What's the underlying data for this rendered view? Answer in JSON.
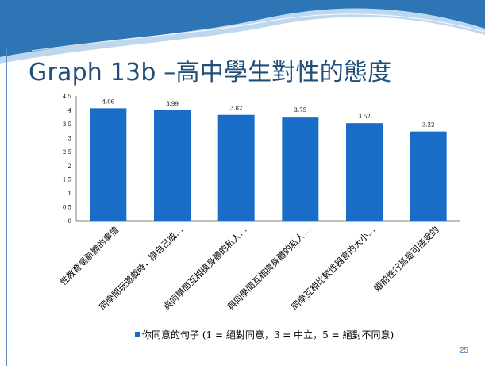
{
  "slide": {
    "title": "Graph 13b –高中學生對性的態度",
    "page_number": "25"
  },
  "colors": {
    "bar": "#1a6dc7",
    "title": "#1f4e79",
    "banner_dark": "#2e75b6",
    "banner_light": "#bdd7ee"
  },
  "chart_data": {
    "type": "bar",
    "categories": [
      "性教育是骯髒的事情",
      "同學間玩遊戲時，摸自己或…",
      "與同學間互相摸身體的私人…",
      "與同學間互相摸身體的私人…",
      "同學互相比較性器官的大小…",
      "婚前性行爲是可接受的"
    ],
    "series": [
      {
        "name": "你同意的句子 (1 = 絕對同意，3 = 中立，5 = 絕對不同意)",
        "values": [
          4.06,
          3.99,
          3.82,
          3.75,
          3.52,
          3.22
        ]
      }
    ],
    "value_labels": [
      "4.06",
      "3.99",
      "3.82",
      "3.75",
      "3.52",
      "3.22"
    ],
    "y_ticks": [
      "0",
      "0.5",
      "1",
      "1.5",
      "2",
      "2.5",
      "3",
      "3.5",
      "4",
      "4.5"
    ],
    "ylim": [
      0,
      4.5
    ],
    "grid": false,
    "legend_position": "bottom"
  }
}
